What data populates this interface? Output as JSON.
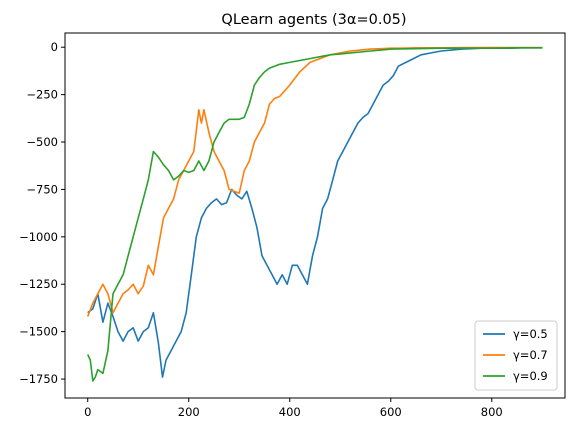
{
  "chart_data": {
    "type": "line",
    "title": "QLearn agents (3α=0.05)",
    "xlabel": "",
    "ylabel": "",
    "xlim": [
      -45,
      945
    ],
    "ylim": [
      -1850,
      75
    ],
    "x_ticks": [
      0,
      200,
      400,
      600,
      800
    ],
    "y_ticks": [
      0,
      -250,
      -500,
      -750,
      -1000,
      -1250,
      -1500,
      -1750
    ],
    "x_tick_labels": [
      "0",
      "200",
      "400",
      "600",
      "800"
    ],
    "y_tick_labels": [
      "0",
      "−250",
      "−500",
      "−750",
      "−1000",
      "−1250",
      "−1500",
      "−1750"
    ],
    "grid": false,
    "legend_position": "bottom-right",
    "series": [
      {
        "name": "γ=0.5",
        "color": "#1f77b4",
        "x": [
          0,
          10,
          20,
          30,
          40,
          50,
          60,
          70,
          80,
          90,
          100,
          110,
          120,
          130,
          140,
          148,
          155,
          165,
          175,
          185,
          195,
          205,
          215,
          225,
          235,
          245,
          255,
          265,
          275,
          285,
          295,
          305,
          315,
          325,
          335,
          345,
          355,
          365,
          375,
          385,
          395,
          405,
          415,
          425,
          435,
          445,
          455,
          465,
          475,
          485,
          495,
          505,
          515,
          525,
          535,
          545,
          555,
          565,
          575,
          585,
          595,
          605,
          615,
          630,
          645,
          660,
          680,
          700,
          720,
          740,
          760,
          780,
          800,
          820,
          840,
          860,
          880,
          900
        ],
        "values": [
          -1400,
          -1380,
          -1300,
          -1450,
          -1350,
          -1420,
          -1500,
          -1550,
          -1500,
          -1480,
          -1550,
          -1500,
          -1480,
          -1400,
          -1560,
          -1740,
          -1650,
          -1600,
          -1550,
          -1500,
          -1400,
          -1200,
          -1000,
          -900,
          -850,
          -820,
          -800,
          -830,
          -820,
          -750,
          -780,
          -800,
          -760,
          -850,
          -950,
          -1100,
          -1150,
          -1200,
          -1250,
          -1200,
          -1250,
          -1150,
          -1150,
          -1200,
          -1250,
          -1100,
          -1000,
          -850,
          -800,
          -700,
          -600,
          -550,
          -500,
          -450,
          -400,
          -370,
          -350,
          -300,
          -250,
          -200,
          -180,
          -150,
          -100,
          -80,
          -60,
          -40,
          -30,
          -20,
          -15,
          -10,
          -8,
          -5,
          -5,
          -5,
          -5,
          -3,
          -3,
          -3
        ]
      },
      {
        "name": "γ=0.7",
        "color": "#ff7f0e",
        "x": [
          0,
          10,
          20,
          30,
          40,
          50,
          60,
          70,
          80,
          90,
          100,
          110,
          120,
          130,
          140,
          150,
          160,
          170,
          180,
          190,
          200,
          210,
          220,
          225,
          230,
          240,
          250,
          260,
          270,
          280,
          290,
          300,
          310,
          320,
          330,
          340,
          350,
          360,
          370,
          380,
          390,
          400,
          420,
          440,
          460,
          480,
          500,
          520,
          540,
          560,
          580,
          600,
          620,
          650,
          700,
          750,
          800,
          850,
          900
        ],
        "values": [
          -1420,
          -1350,
          -1300,
          -1250,
          -1300,
          -1400,
          -1350,
          -1300,
          -1280,
          -1250,
          -1300,
          -1260,
          -1150,
          -1200,
          -1050,
          -900,
          -850,
          -800,
          -700,
          -650,
          -600,
          -550,
          -330,
          -400,
          -330,
          -450,
          -550,
          -600,
          -650,
          -750,
          -760,
          -770,
          -650,
          -600,
          -500,
          -450,
          -400,
          -300,
          -270,
          -260,
          -230,
          -200,
          -130,
          -80,
          -60,
          -40,
          -30,
          -20,
          -15,
          -10,
          -8,
          -5,
          -5,
          -3,
          -3,
          -2,
          -2,
          -2,
          -2
        ]
      },
      {
        "name": "γ=0.9",
        "color": "#2ca02c",
        "x": [
          0,
          5,
          10,
          15,
          20,
          30,
          40,
          50,
          60,
          70,
          80,
          90,
          100,
          110,
          120,
          130,
          140,
          150,
          160,
          170,
          180,
          190,
          200,
          210,
          220,
          230,
          240,
          250,
          260,
          270,
          280,
          290,
          300,
          310,
          320,
          330,
          340,
          350,
          360,
          370,
          380,
          400,
          420,
          440,
          460,
          480,
          500,
          520,
          540,
          560,
          580,
          600,
          650,
          700,
          750,
          800,
          850,
          900
        ],
        "values": [
          -1620,
          -1650,
          -1760,
          -1740,
          -1700,
          -1720,
          -1600,
          -1300,
          -1250,
          -1200,
          -1100,
          -1000,
          -900,
          -800,
          -700,
          -550,
          -580,
          -620,
          -650,
          -700,
          -680,
          -650,
          -660,
          -650,
          -600,
          -650,
          -600,
          -500,
          -450,
          -400,
          -380,
          -380,
          -380,
          -370,
          -300,
          -200,
          -160,
          -130,
          -110,
          -100,
          -90,
          -80,
          -70,
          -60,
          -50,
          -40,
          -35,
          -30,
          -25,
          -20,
          -15,
          -10,
          -8,
          -5,
          -5,
          -5,
          -3,
          -3
        ]
      }
    ]
  }
}
